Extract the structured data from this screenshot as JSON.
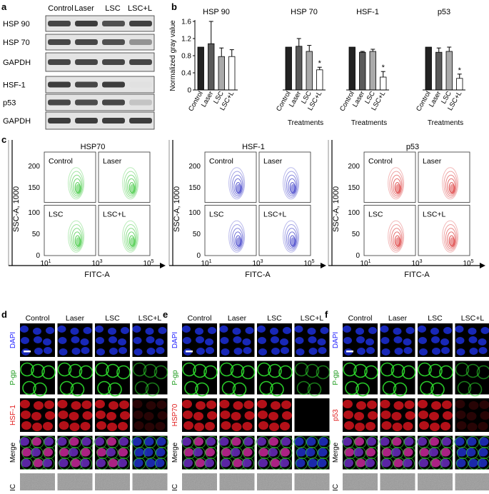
{
  "panel_letters": {
    "a": "a",
    "b": "b",
    "c": "c",
    "d": "d",
    "e": "e",
    "f": "f"
  },
  "western_blot": {
    "columns": [
      "Control",
      "Laser",
      "LSC",
      "LSC+L"
    ],
    "rows": [
      {
        "label": "HSP 90",
        "intensity": [
          0.85,
          0.9,
          0.8,
          0.88
        ]
      },
      {
        "label": "HSP 70",
        "intensity": [
          0.85,
          0.85,
          0.8,
          0.45
        ]
      },
      {
        "label": "GAPDH",
        "intensity": [
          0.85,
          0.85,
          0.85,
          0.85
        ]
      },
      {
        "label": "HSF-1",
        "intensity": [
          0.9,
          0.85,
          0.9,
          0.05
        ]
      },
      {
        "label": "p53",
        "intensity": [
          0.85,
          0.82,
          0.85,
          0.2
        ]
      },
      {
        "label": "GAPDH",
        "intensity": [
          0.9,
          0.9,
          0.9,
          0.9
        ]
      }
    ]
  },
  "chart_data": [
    {
      "type": "bar",
      "title": "HSP 90",
      "categories": [
        "Control",
        "Laser",
        "LSC",
        "LSC+L"
      ],
      "values": [
        1.0,
        1.08,
        0.78,
        0.78
      ],
      "errors": [
        0,
        0.52,
        0.2,
        0.16
      ],
      "significant": [
        false,
        false,
        false,
        false
      ],
      "ylabel": "Normalized gray value",
      "xlabel": "",
      "ylim": [
        0,
        1.6
      ],
      "yticks": [
        "0",
        "0.4",
        "0.8",
        "1.2",
        "1.6"
      ],
      "bar_colors": [
        "#222222",
        "#5a5a5a",
        "#aaaaaa",
        "#ffffff"
      ]
    },
    {
      "type": "bar",
      "title": "HSP 70",
      "categories": [
        "Control",
        "Laser",
        "LSC",
        "LSC+L"
      ],
      "values": [
        1.0,
        1.02,
        0.9,
        0.47
      ],
      "errors": [
        0,
        0.18,
        0.14,
        0.06
      ],
      "significant": [
        false,
        false,
        false,
        true
      ],
      "xlabel": "Treatments",
      "ylim": [
        0,
        1.6
      ]
    },
    {
      "type": "bar",
      "title": "HSF-1",
      "categories": [
        "Control",
        "Laser",
        "LSC",
        "LSC+L"
      ],
      "values": [
        1.0,
        0.88,
        0.9,
        0.3
      ],
      "errors": [
        0,
        0.02,
        0.05,
        0.13
      ],
      "significant": [
        false,
        false,
        false,
        true
      ],
      "xlabel": "Treatments",
      "ylim": [
        0,
        1.6
      ]
    },
    {
      "type": "bar",
      "title": "p53",
      "categories": [
        "Control",
        "Laser",
        "LSC",
        "LSC+L"
      ],
      "values": [
        1.0,
        0.88,
        0.9,
        0.27
      ],
      "errors": [
        0,
        0.1,
        0.1,
        0.1
      ],
      "significant": [
        false,
        false,
        false,
        true
      ],
      "xlabel": "Treatments",
      "ylim": [
        0,
        1.6
      ]
    }
  ],
  "star": "*",
  "flow": {
    "titles": [
      "HSP70",
      "HSF-1",
      "p53"
    ],
    "quadrants": [
      "Control",
      "Laser",
      "LSC",
      "LSC+L"
    ],
    "ylabel": "SSC-A, 1000",
    "xlabel": "FITC-A",
    "yticks": [
      "0",
      "50",
      "100",
      "150",
      "200"
    ],
    "xticks": [
      {
        "b": "10",
        "e": "1"
      },
      {
        "b": "10",
        "e": "3"
      },
      {
        "b": "10",
        "e": "5"
      }
    ],
    "colors": [
      "#3cc83c",
      "#3c3cc8",
      "#dc3c3c"
    ]
  },
  "micro": {
    "columns": [
      "Control",
      "Laser",
      "LSC",
      "LSC+L"
    ],
    "panels": [
      {
        "rows": [
          "DAPI",
          "P-gp",
          "HSF-1",
          "Merge",
          "DIC"
        ],
        "row_colors": [
          "#1a1aff",
          "#1a9a1a",
          "#e01a1a",
          "#000000",
          "#000000"
        ]
      },
      {
        "rows": [
          "DAPI",
          "P-gp",
          "HSP70",
          "Merge",
          "DIC"
        ],
        "row_colors": [
          "#1a1aff",
          "#1a9a1a",
          "#e01a1a",
          "#000000",
          "#000000"
        ]
      },
      {
        "rows": [
          "DAPI",
          "P-gp",
          "p53",
          "Merge",
          "DIC"
        ],
        "row_colors": [
          "#1a1aff",
          "#1a9a1a",
          "#e01a1a",
          "#000000",
          "#000000"
        ]
      }
    ]
  }
}
